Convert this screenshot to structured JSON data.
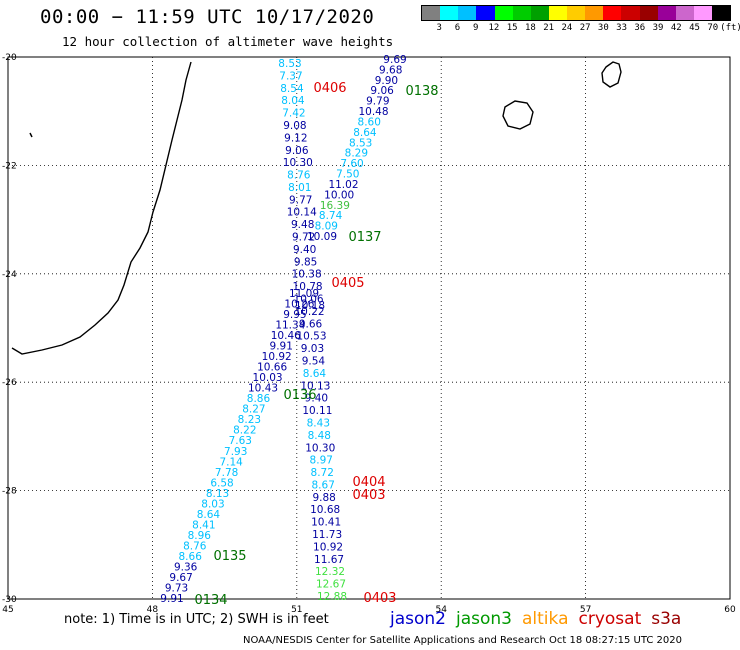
{
  "title": "00:00 − 11:59 UTC 10/17/2020",
  "subtitle": "12 hour collection of altimeter wave heights",
  "colorbar": {
    "colors": [
      "#808080",
      "#00ffff",
      "#00c0ff",
      "#0000ff",
      "#00ff00",
      "#00cc00",
      "#00a000",
      "#ffff00",
      "#ffcc00",
      "#ff9900",
      "#ff0000",
      "#cc0000",
      "#990000",
      "#990099",
      "#cc66cc",
      "#ff99ff",
      "#000000"
    ],
    "labels": [
      "3",
      "6",
      "9",
      "12",
      "15",
      "18",
      "21",
      "24",
      "27",
      "30",
      "33",
      "36",
      "39",
      "42",
      "45",
      "70",
      "(ft)"
    ]
  },
  "axes": {
    "lon_ticks": [
      "45",
      "48",
      "51",
      "54",
      "57",
      "60"
    ],
    "lat_ticks": [
      "-20",
      "-22",
      "-24",
      "-26",
      "-28",
      "-30"
    ],
    "lon_range": [
      45,
      60
    ],
    "lat_range": [
      -30,
      -20
    ]
  },
  "map_data": {
    "tracks": [
      {
        "satellite": "jason2",
        "color": "#00c0ff",
        "values": [
          "8.53",
          "7.37",
          "8.54",
          "8.04",
          "7.42"
        ]
      },
      {
        "satellite": "jason2",
        "color": "#0000a0",
        "values": [
          "9.08",
          "9.12",
          "9.06",
          "10.30"
        ]
      },
      {
        "satellite": "jason2",
        "color": "#00c0ff",
        "values": [
          "8.76",
          "8.01"
        ]
      },
      {
        "satellite": "jason2",
        "color": "#0000a0",
        "values": [
          "9.77",
          "10.14",
          "9.48",
          "9.72",
          "9.40",
          "9.85",
          "10.38",
          "10.78",
          "10.06"
        ]
      },
      {
        "satellite": "jason2",
        "color": "#0000a0",
        "values": [
          "10.22",
          "9.66",
          "10.53",
          "9.03",
          "9.54"
        ]
      },
      {
        "satellite": "jason2",
        "color": "#00c0ff",
        "values": [
          "8.64"
        ]
      },
      {
        "satellite": "jason2",
        "color": "#0000a0",
        "values": [
          "10.13",
          "9.40",
          "10.11"
        ]
      },
      {
        "satellite": "jason2",
        "color": "#00c0ff",
        "values": [
          "8.43",
          "8.48"
        ]
      },
      {
        "satellite": "jason2",
        "color": "#0000a0",
        "values": [
          "10.30"
        ]
      },
      {
        "satellite": "jason2",
        "color": "#00c0ff",
        "values": [
          "8.97",
          "8.72",
          "8.67"
        ]
      },
      {
        "satellite": "jason2",
        "color": "#0000a0",
        "values": [
          "9.88",
          "10.68",
          "10.41",
          "11.73",
          "10.92",
          "11.67"
        ]
      },
      {
        "satellite": "jason2",
        "color": "#40e040",
        "values": [
          "12.32",
          "12.67",
          "12.88"
        ]
      }
    ],
    "track_right": [
      {
        "v": "9.69",
        "c": "#0000a0"
      },
      {
        "v": "9.68",
        "c": "#0000a0"
      },
      {
        "v": "9.90",
        "c": "#0000a0"
      },
      {
        "v": "9.06",
        "c": "#0000a0"
      },
      {
        "v": "9.79",
        "c": "#0000a0"
      },
      {
        "v": "10.48",
        "c": "#0000a0"
      },
      {
        "v": "8.60",
        "c": "#00c0ff"
      },
      {
        "v": "8.64",
        "c": "#00c0ff"
      },
      {
        "v": "8.53",
        "c": "#00c0ff"
      },
      {
        "v": "8.29",
        "c": "#00c0ff"
      },
      {
        "v": "7.60",
        "c": "#00c0ff"
      },
      {
        "v": "7.50",
        "c": "#00c0ff"
      },
      {
        "v": "11.02",
        "c": "#0000a0"
      },
      {
        "v": "10.00",
        "c": "#0000a0"
      },
      {
        "v": "16.39",
        "c": "#40c040"
      },
      {
        "v": "8.74",
        "c": "#00c0ff"
      },
      {
        "v": "8.09",
        "c": "#00c0ff"
      },
      {
        "v": "10.09",
        "c": "#0000a0"
      }
    ],
    "track_left": [
      {
        "v": "11.09",
        "c": "#0000a0"
      },
      {
        "v": "10.26",
        "c": "#0000a0"
      },
      {
        "v": "9.95",
        "c": "#0000a0"
      },
      {
        "v": "11.34",
        "c": "#0000a0"
      },
      {
        "v": "10.46",
        "c": "#0000a0"
      },
      {
        "v": "9.91",
        "c": "#0000a0"
      },
      {
        "v": "10.92",
        "c": "#0000a0"
      },
      {
        "v": "10.66",
        "c": "#0000a0"
      },
      {
        "v": "10.03",
        "c": "#0000a0"
      },
      {
        "v": "10.43",
        "c": "#0000a0"
      },
      {
        "v": "8.86",
        "c": "#00c0ff"
      },
      {
        "v": "8.27",
        "c": "#00c0ff"
      },
      {
        "v": "8.23",
        "c": "#00c0ff"
      },
      {
        "v": "8.22",
        "c": "#00c0ff"
      },
      {
        "v": "7.63",
        "c": "#00c0ff"
      },
      {
        "v": "7.93",
        "c": "#00c0ff"
      },
      {
        "v": "7.14",
        "c": "#00c0ff"
      },
      {
        "v": "7.78",
        "c": "#00c0ff"
      },
      {
        "v": "6.58",
        "c": "#00c0ff"
      },
      {
        "v": "8.13",
        "c": "#00c0ff"
      },
      {
        "v": "8.03",
        "c": "#00c0ff"
      },
      {
        "v": "8.64",
        "c": "#00c0ff"
      },
      {
        "v": "8.41",
        "c": "#00c0ff"
      },
      {
        "v": "8.96",
        "c": "#00c0ff"
      },
      {
        "v": "8.76",
        "c": "#00c0ff"
      },
      {
        "v": "8.66",
        "c": "#00c0ff"
      },
      {
        "v": "9.36",
        "c": "#0000a0"
      },
      {
        "v": "9.67",
        "c": "#0000a0"
      },
      {
        "v": "9.73",
        "c": "#0000a0"
      },
      {
        "v": "9.91",
        "c": "#0000a0"
      }
    ],
    "track_center": [
      {
        "v": "10.18",
        "c": "#0000a0"
      }
    ],
    "time_labels": [
      {
        "t": "0406",
        "c": "#dd0000"
      },
      {
        "t": "0138",
        "c": "#007000"
      },
      {
        "t": "0137",
        "c": "#007000"
      },
      {
        "t": "0405",
        "c": "#dd0000"
      },
      {
        "t": "0136",
        "c": "#007000"
      },
      {
        "t": "0404",
        "c": "#dd0000"
      },
      {
        "t": "0403",
        "c": "#dd0000"
      },
      {
        "t": "0135",
        "c": "#007000"
      },
      {
        "t": "0134",
        "c": "#007000"
      },
      {
        "t": "0403",
        "c": "#dd0000"
      }
    ]
  },
  "note": "note: 1) Time is in UTC; 2) SWH is in feet",
  "credit": "NOAA/NESDIS Center for Satellite Applications and Research   Oct 18 08:27:15 UTC 2020",
  "legend": [
    {
      "label": "jason2",
      "color": "#0000cc"
    },
    {
      "label": "jason3",
      "color": "#009900"
    },
    {
      "label": "altika",
      "color": "#ff9900"
    },
    {
      "label": "cryosat",
      "color": "#cc0000"
    },
    {
      "label": "s3a",
      "color": "#990000"
    }
  ]
}
